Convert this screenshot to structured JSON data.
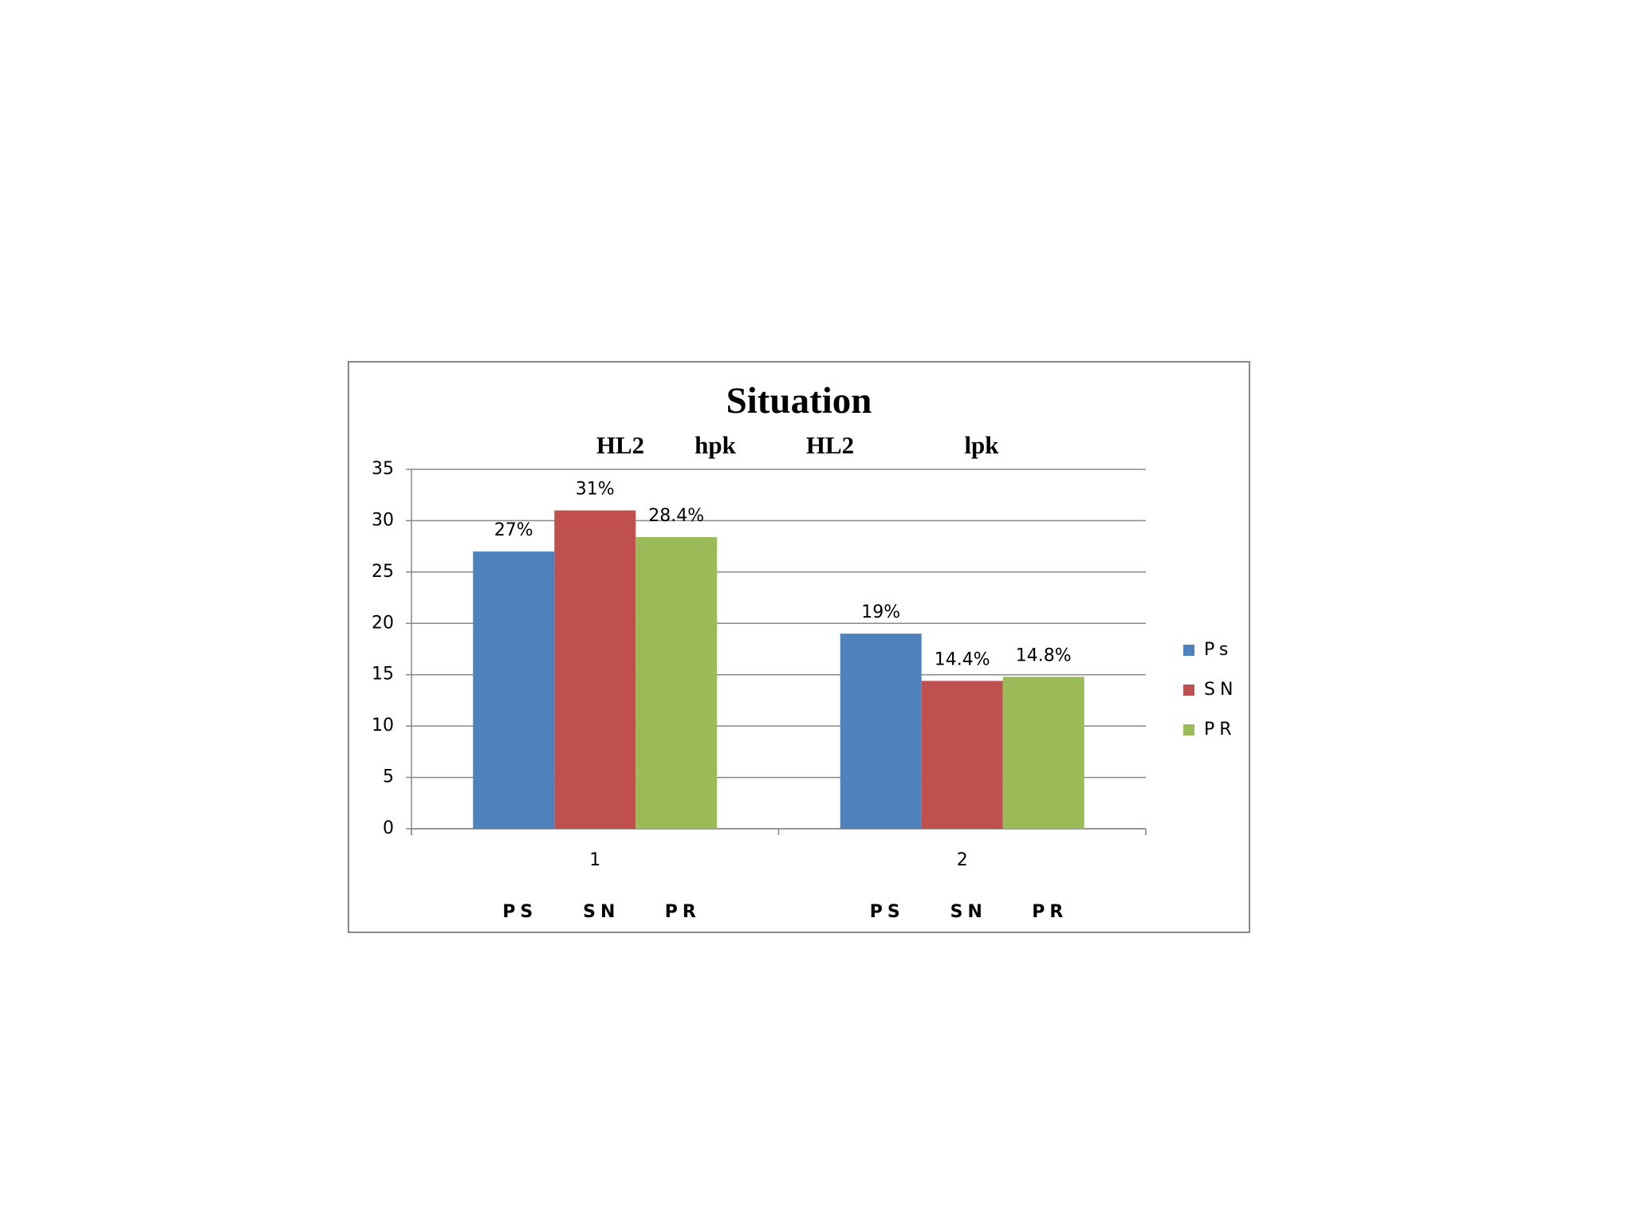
{
  "chart_data": {
    "type": "bar",
    "title": "Situation",
    "annotations": [
      "HL2",
      "hpk",
      "HL2",
      "lpk"
    ],
    "categories": [
      "1",
      "2"
    ],
    "group_labels": [
      [
        "PS",
        "SN",
        "PR"
      ],
      [
        "PS",
        "SN",
        "PR"
      ]
    ],
    "series": [
      {
        "name": "Ps",
        "color": "#4f81bd",
        "values": [
          27,
          19
        ],
        "value_labels": [
          "27%",
          "19%"
        ]
      },
      {
        "name": "SN",
        "color": "#c0504d",
        "values": [
          31,
          14.4
        ],
        "value_labels": [
          "31%",
          "14.4%"
        ]
      },
      {
        "name": "PR",
        "color": "#9bbb59",
        "values": [
          28.4,
          14.8
        ],
        "value_labels": [
          "28.4%",
          "14.8%"
        ]
      }
    ],
    "ylim": [
      0,
      35
    ],
    "yticks": [
      0,
      5,
      10,
      15,
      20,
      25,
      30,
      35
    ],
    "grid": true,
    "legend": "right"
  }
}
